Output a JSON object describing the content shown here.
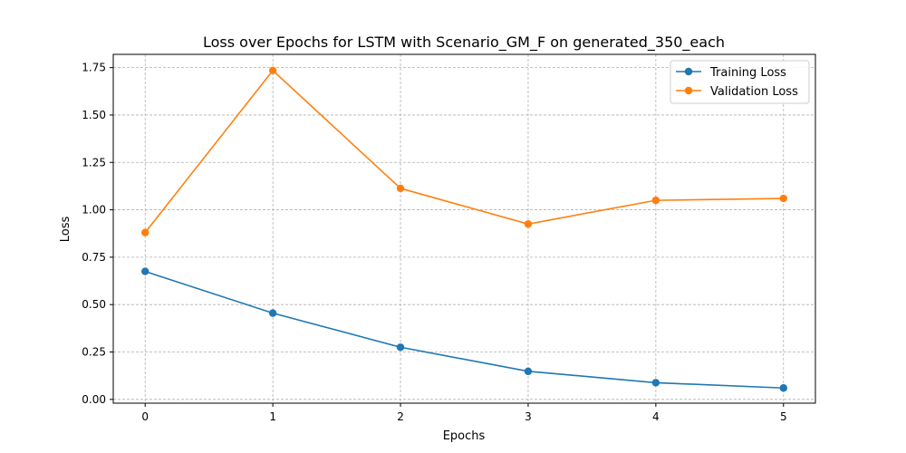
{
  "chart_data": {
    "type": "line",
    "title": "Loss over Epochs for LSTM with Scenario_GM_F on generated_350_each",
    "xlabel": "Epochs",
    "ylabel": "Loss",
    "x": [
      0,
      1,
      2,
      3,
      4,
      5
    ],
    "x_ticks": [
      "0",
      "1",
      "2",
      "3",
      "4",
      "5"
    ],
    "y_ticks": [
      "0.00",
      "0.25",
      "0.50",
      "0.75",
      "1.00",
      "1.25",
      "1.50",
      "1.75"
    ],
    "xlim": [
      -0.25,
      5.25
    ],
    "ylim": [
      -0.02,
      1.82
    ],
    "grid": true,
    "legend_position": "top-right",
    "series": [
      {
        "name": "Training Loss",
        "color": "#1f77b4",
        "marker": "circle",
        "values": [
          0.675,
          0.455,
          0.275,
          0.148,
          0.088,
          0.06
        ]
      },
      {
        "name": "Validation Loss",
        "color": "#ff7f0e",
        "marker": "circle",
        "values": [
          0.88,
          1.735,
          1.113,
          0.925,
          1.05,
          1.06
        ]
      }
    ]
  }
}
